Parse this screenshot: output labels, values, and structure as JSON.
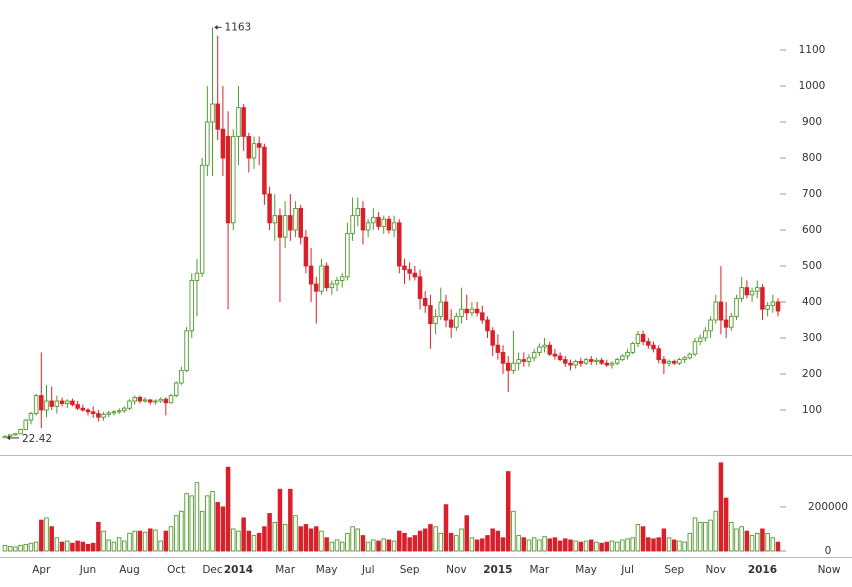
{
  "chart_data": {
    "type": "candlestick",
    "up_color": "#4f9a2c",
    "down_color": "#d9202a",
    "ylim": [
      -25,
      1239
    ],
    "yticks": [
      100,
      200,
      300,
      400,
      500,
      600,
      700,
      800,
      900,
      1000,
      1100
    ],
    "volume_ylim": [
      0,
      440000
    ],
    "volume_yticks": [
      0,
      200000
    ],
    "high_label_index": 40,
    "low_label_index": 0,
    "x_end_label": "Now",
    "categories": [
      null,
      null,
      null,
      null,
      null,
      null,
      null,
      "Apr",
      null,
      null,
      null,
      null,
      null,
      null,
      null,
      null,
      "Jun",
      null,
      null,
      null,
      null,
      null,
      null,
      null,
      "Aug",
      null,
      null,
      null,
      null,
      null,
      null,
      null,
      null,
      "Oct",
      null,
      null,
      null,
      null,
      null,
      null,
      "Dec",
      null,
      null,
      null,
      null,
      "2014",
      null,
      null,
      null,
      null,
      null,
      null,
      null,
      null,
      "Mar",
      null,
      null,
      null,
      null,
      null,
      null,
      null,
      "May",
      null,
      null,
      null,
      null,
      null,
      null,
      null,
      "Jul",
      null,
      null,
      null,
      null,
      null,
      null,
      null,
      "Sep",
      null,
      null,
      null,
      null,
      null,
      null,
      null,
      null,
      "Nov",
      null,
      null,
      null,
      null,
      null,
      null,
      null,
      "2015",
      null,
      null,
      null,
      null,
      null,
      null,
      null,
      "Mar",
      null,
      null,
      null,
      null,
      null,
      null,
      null,
      null,
      "May",
      null,
      null,
      null,
      null,
      null,
      null,
      null,
      "Jul",
      null,
      null,
      null,
      null,
      null,
      null,
      null,
      null,
      "Sep",
      null,
      null,
      null,
      null,
      null,
      null,
      null,
      "Nov",
      null,
      null,
      null,
      null,
      null,
      null,
      null,
      null,
      "2016",
      null,
      null,
      null
    ],
    "ohlc": [
      [
        23,
        30,
        22.42,
        27
      ],
      [
        27,
        32,
        26,
        31
      ],
      [
        31,
        35,
        29,
        34
      ],
      [
        34,
        48,
        33,
        46
      ],
      [
        46,
        75,
        44,
        72
      ],
      [
        72,
        95,
        60,
        90
      ],
      [
        90,
        145,
        85,
        140
      ],
      [
        140,
        260,
        50,
        100
      ],
      [
        100,
        170,
        80,
        125
      ],
      [
        125,
        165,
        100,
        110
      ],
      [
        110,
        140,
        90,
        125
      ],
      [
        125,
        135,
        110,
        118
      ],
      [
        118,
        130,
        105,
        125
      ],
      [
        125,
        132,
        110,
        115
      ],
      [
        115,
        125,
        100,
        105
      ],
      [
        105,
        115,
        95,
        100
      ],
      [
        100,
        105,
        85,
        95
      ],
      [
        95,
        110,
        78,
        90
      ],
      [
        90,
        100,
        68,
        80
      ],
      [
        80,
        95,
        70,
        88
      ],
      [
        88,
        98,
        80,
        92
      ],
      [
        92,
        100,
        85,
        95
      ],
      [
        95,
        105,
        88,
        98
      ],
      [
        98,
        110,
        92,
        105
      ],
      [
        105,
        130,
        100,
        125
      ],
      [
        125,
        140,
        115,
        135
      ],
      [
        135,
        140,
        118,
        125
      ],
      [
        125,
        135,
        120,
        128
      ],
      [
        128,
        130,
        115,
        122
      ],
      [
        122,
        130,
        115,
        125
      ],
      [
        125,
        135,
        120,
        130
      ],
      [
        130,
        135,
        85,
        120
      ],
      [
        120,
        145,
        118,
        140
      ],
      [
        140,
        180,
        135,
        175
      ],
      [
        175,
        220,
        170,
        210
      ],
      [
        210,
        330,
        205,
        320
      ],
      [
        320,
        480,
        300,
        460
      ],
      [
        460,
        520,
        360,
        480
      ],
      [
        480,
        800,
        470,
        780
      ],
      [
        780,
        1000,
        750,
        900
      ],
      [
        900,
        1163,
        750,
        950
      ],
      [
        950,
        1140,
        850,
        880
      ],
      [
        880,
        1000,
        750,
        800
      ],
      [
        860,
        930,
        380,
        620
      ],
      [
        620,
        880,
        600,
        860
      ],
      [
        860,
        1000,
        780,
        940
      ],
      [
        940,
        950,
        820,
        860
      ],
      [
        860,
        870,
        760,
        800
      ],
      [
        800,
        860,
        770,
        840
      ],
      [
        840,
        860,
        780,
        830
      ],
      [
        830,
        840,
        670,
        700
      ],
      [
        700,
        720,
        600,
        620
      ],
      [
        620,
        700,
        570,
        640
      ],
      [
        640,
        660,
        400,
        580
      ],
      [
        580,
        680,
        550,
        640
      ],
      [
        640,
        700,
        570,
        600
      ],
      [
        600,
        680,
        580,
        660
      ],
      [
        660,
        670,
        560,
        580
      ],
      [
        580,
        600,
        480,
        500
      ],
      [
        500,
        550,
        400,
        450
      ],
      [
        450,
        470,
        340,
        430
      ],
      [
        430,
        520,
        420,
        500
      ],
      [
        500,
        510,
        430,
        440
      ],
      [
        440,
        460,
        420,
        450
      ],
      [
        450,
        470,
        430,
        460
      ],
      [
        460,
        480,
        440,
        470
      ],
      [
        470,
        620,
        460,
        590
      ],
      [
        590,
        690,
        570,
        640
      ],
      [
        640,
        690,
        610,
        660
      ],
      [
        660,
        680,
        560,
        600
      ],
      [
        600,
        630,
        580,
        620
      ],
      [
        620,
        660,
        600,
        635
      ],
      [
        635,
        650,
        600,
        610
      ],
      [
        610,
        640,
        590,
        630
      ],
      [
        630,
        640,
        590,
        600
      ],
      [
        600,
        640,
        580,
        620
      ],
      [
        620,
        630,
        480,
        500
      ],
      [
        500,
        520,
        450,
        490
      ],
      [
        490,
        510,
        460,
        480
      ],
      [
        480,
        500,
        460,
        470
      ],
      [
        470,
        490,
        380,
        410
      ],
      [
        410,
        430,
        370,
        390
      ],
      [
        390,
        420,
        270,
        340
      ],
      [
        340,
        380,
        310,
        360
      ],
      [
        360,
        440,
        350,
        400
      ],
      [
        400,
        420,
        330,
        350
      ],
      [
        350,
        380,
        300,
        330
      ],
      [
        330,
        370,
        320,
        360
      ],
      [
        360,
        440,
        340,
        380
      ],
      [
        380,
        420,
        350,
        370
      ],
      [
        370,
        400,
        360,
        380
      ],
      [
        380,
        400,
        360,
        370
      ],
      [
        370,
        390,
        340,
        350
      ],
      [
        350,
        360,
        300,
        320
      ],
      [
        320,
        330,
        250,
        280
      ],
      [
        280,
        310,
        240,
        260
      ],
      [
        260,
        280,
        200,
        230
      ],
      [
        230,
        250,
        150,
        210
      ],
      [
        210,
        320,
        200,
        230
      ],
      [
        230,
        260,
        210,
        240
      ],
      [
        240,
        260,
        220,
        235
      ],
      [
        235,
        255,
        220,
        245
      ],
      [
        245,
        270,
        235,
        260
      ],
      [
        260,
        285,
        250,
        275
      ],
      [
        275,
        300,
        260,
        280
      ],
      [
        280,
        290,
        250,
        255
      ],
      [
        255,
        270,
        240,
        250
      ],
      [
        250,
        260,
        235,
        240
      ],
      [
        240,
        250,
        220,
        230
      ],
      [
        230,
        240,
        210,
        225
      ],
      [
        225,
        240,
        215,
        235
      ],
      [
        235,
        245,
        220,
        230
      ],
      [
        230,
        245,
        225,
        240
      ],
      [
        240,
        250,
        225,
        235
      ],
      [
        235,
        245,
        225,
        238
      ],
      [
        238,
        245,
        225,
        230
      ],
      [
        230,
        240,
        220,
        225
      ],
      [
        225,
        235,
        215,
        230
      ],
      [
        230,
        245,
        225,
        240
      ],
      [
        240,
        255,
        235,
        250
      ],
      [
        250,
        270,
        240,
        260
      ],
      [
        260,
        290,
        255,
        285
      ],
      [
        285,
        320,
        275,
        310
      ],
      [
        310,
        320,
        280,
        290
      ],
      [
        290,
        300,
        270,
        280
      ],
      [
        280,
        290,
        260,
        270
      ],
      [
        270,
        280,
        230,
        240
      ],
      [
        240,
        250,
        200,
        230
      ],
      [
        230,
        240,
        220,
        235
      ],
      [
        235,
        240,
        225,
        230
      ],
      [
        230,
        245,
        225,
        240
      ],
      [
        240,
        250,
        230,
        245
      ],
      [
        245,
        260,
        240,
        255
      ],
      [
        255,
        300,
        250,
        290
      ],
      [
        290,
        310,
        280,
        300
      ],
      [
        300,
        330,
        290,
        320
      ],
      [
        320,
        360,
        300,
        350
      ],
      [
        350,
        420,
        340,
        400
      ],
      [
        400,
        500,
        310,
        350
      ],
      [
        350,
        400,
        300,
        330
      ],
      [
        330,
        370,
        320,
        360
      ],
      [
        360,
        420,
        350,
        410
      ],
      [
        410,
        470,
        400,
        440
      ],
      [
        440,
        460,
        410,
        420
      ],
      [
        420,
        440,
        400,
        430
      ],
      [
        430,
        460,
        410,
        440
      ],
      [
        440,
        450,
        350,
        380
      ],
      [
        380,
        400,
        360,
        390
      ],
      [
        390,
        420,
        370,
        400
      ],
      [
        400,
        410,
        360,
        375
      ]
    ],
    "volume": [
      25000,
      20000,
      18000,
      25000,
      30000,
      35000,
      40000,
      140000,
      150000,
      110000,
      60000,
      40000,
      45000,
      35000,
      45000,
      40000,
      30000,
      35000,
      130000,
      90000,
      50000,
      40000,
      60000,
      45000,
      80000,
      90000,
      90000,
      85000,
      100000,
      95000,
      45000,
      90000,
      110000,
      160000,
      180000,
      260000,
      250000,
      310000,
      180000,
      250000,
      270000,
      220000,
      200000,
      380000,
      100000,
      90000,
      150000,
      90000,
      70000,
      80000,
      110000,
      170000,
      130000,
      280000,
      120000,
      280000,
      160000,
      110000,
      120000,
      100000,
      110000,
      90000,
      60000,
      40000,
      50000,
      40000,
      80000,
      110000,
      100000,
      70000,
      40000,
      50000,
      45000,
      55000,
      50000,
      45000,
      90000,
      80000,
      60000,
      70000,
      90000,
      100000,
      120000,
      110000,
      80000,
      210000,
      80000,
      70000,
      100000,
      160000,
      60000,
      50000,
      55000,
      70000,
      100000,
      90000,
      60000,
      360000,
      180000,
      70000,
      60000,
      50000,
      60000,
      50000,
      65000,
      55000,
      60000,
      45000,
      55000,
      50000,
      45000,
      40000,
      45000,
      50000,
      40000,
      35000,
      40000,
      45000,
      40000,
      50000,
      55000,
      60000,
      120000,
      110000,
      60000,
      55000,
      60000,
      100000,
      60000,
      50000,
      45000,
      40000,
      80000,
      150000,
      130000,
      130000,
      140000,
      180000,
      400000,
      240000,
      130000,
      100000,
      110000,
      90000,
      70000,
      80000,
      100000,
      80000,
      60000,
      40000
    ]
  }
}
